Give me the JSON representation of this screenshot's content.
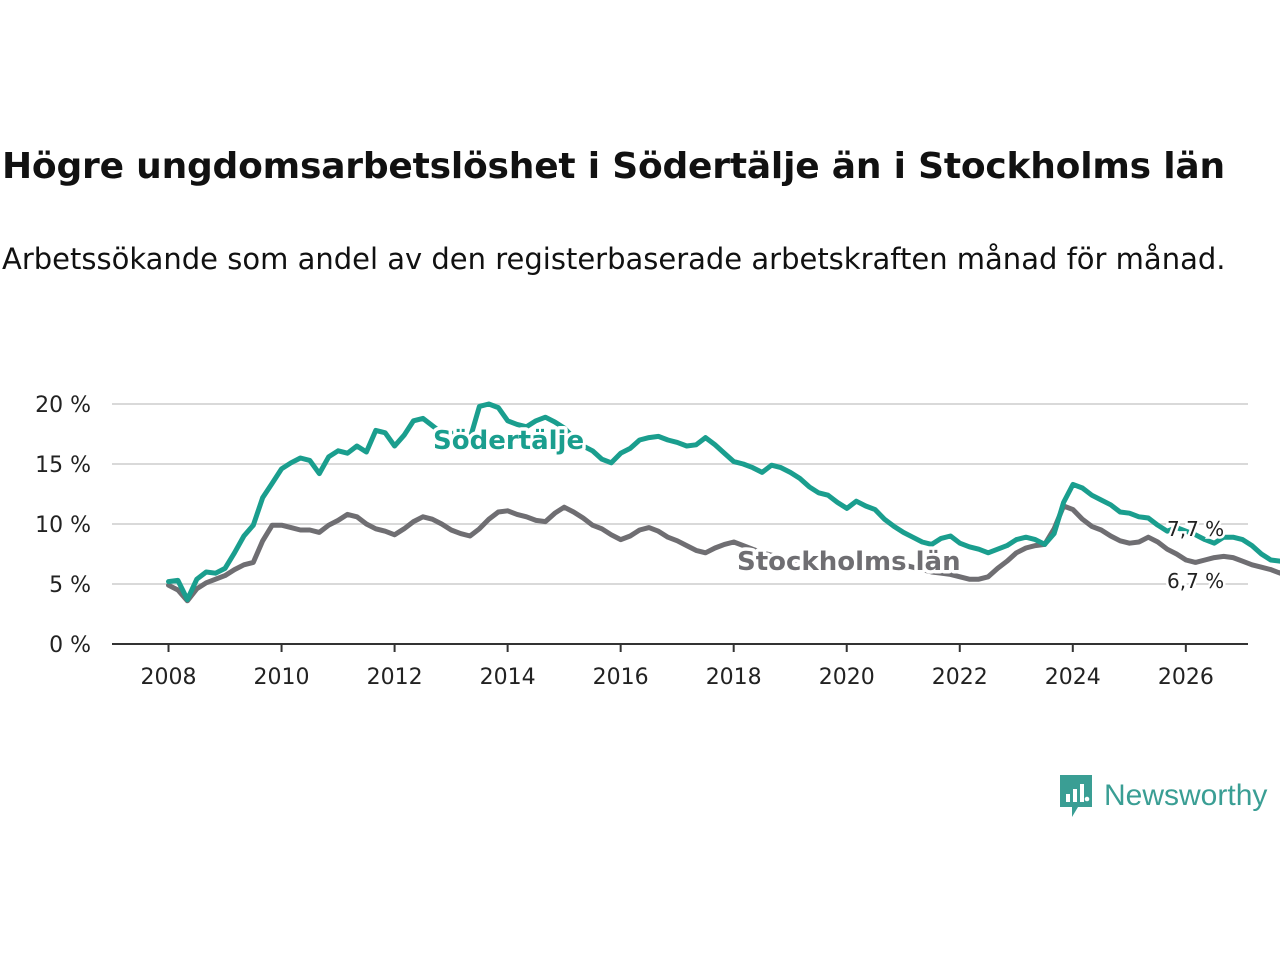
{
  "title": "Högre ungdomsarbetslöshet i Södertälje än i Stockholms län",
  "subtitle": "Arbetssökande som andel av den registerbaserade arbetskraften månad för månad.",
  "brand": {
    "name": "Newsworthy",
    "color": "#3a9e94"
  },
  "chart_data": {
    "type": "line",
    "x_start": 2008.0,
    "x_step": 0.1667,
    "xlim": [
      2007.0,
      2027.1
    ],
    "ylim": [
      0,
      20
    ],
    "x_ticks": [
      2008,
      2010,
      2012,
      2014,
      2016,
      2018,
      2020,
      2022,
      2024,
      2026
    ],
    "x_tick_labels": [
      "2008",
      "2010",
      "2012",
      "2014",
      "2016",
      "2018",
      "2020",
      "2022",
      "2024",
      "2026"
    ],
    "y_ticks": [
      0,
      5,
      10,
      15,
      20
    ],
    "y_tick_labels": [
      "0 %",
      "5 %",
      "10 %",
      "15 %",
      "20 %"
    ],
    "grid": true,
    "series": [
      {
        "name": "Stockholms län",
        "color": "#6f6e72",
        "end_label": "6,7 %",
        "values": [
          4.9,
          4.5,
          3.6,
          4.6,
          5.1,
          5.4,
          5.7,
          6.2,
          6.6,
          6.8,
          8.6,
          9.9,
          9.9,
          9.7,
          9.5,
          9.5,
          9.3,
          9.9,
          10.3,
          10.8,
          10.6,
          10.0,
          9.6,
          9.4,
          9.1,
          9.6,
          10.2,
          10.6,
          10.4,
          10.0,
          9.5,
          9.2,
          9.0,
          9.6,
          10.4,
          11.0,
          11.1,
          10.8,
          10.6,
          10.3,
          10.2,
          10.9,
          11.4,
          11.0,
          10.5,
          9.9,
          9.6,
          9.1,
          8.7,
          9.0,
          9.5,
          9.7,
          9.4,
          8.9,
          8.6,
          8.2,
          7.8,
          7.6,
          8.0,
          8.3,
          8.5,
          8.2,
          7.9,
          7.6,
          7.4,
          7.2,
          6.9,
          7.0,
          7.2,
          7.4,
          7.2,
          6.9,
          6.6,
          6.5,
          6.6,
          6.9,
          7.0,
          6.8,
          6.6,
          6.4,
          6.2,
          6.0,
          5.9,
          5.8,
          5.6,
          5.4,
          5.4,
          5.6,
          6.3,
          6.9,
          7.6,
          8.0,
          8.2,
          8.3,
          9.6,
          11.5,
          11.2,
          10.4,
          9.8,
          9.5,
          9.0,
          8.6,
          8.4,
          8.5,
          8.9,
          8.5,
          7.9,
          7.5,
          7.0,
          6.8,
          7.0,
          7.2,
          7.3,
          7.2,
          6.9,
          6.6,
          6.4,
          6.2,
          5.9,
          6.6,
          7.0,
          7.0,
          6.9,
          6.9,
          6.7,
          6.8,
          6.5,
          6.1,
          6.8,
          7.4,
          7.5,
          7.4,
          7.2,
          7.1,
          7.1,
          7.0,
          6.8,
          6.4,
          7.4,
          7.8,
          7.5,
          7.1,
          6.9,
          6.8,
          6.7
        ]
      },
      {
        "name": "Södertälje",
        "color": "#1a9e8e",
        "end_label": "7,7 %",
        "values": [
          5.2,
          5.3,
          3.7,
          5.4,
          6.0,
          5.9,
          6.3,
          7.6,
          9.0,
          9.9,
          12.2,
          13.4,
          14.6,
          15.1,
          15.5,
          15.3,
          14.2,
          15.6,
          16.1,
          15.9,
          16.5,
          16.0,
          17.8,
          17.6,
          16.5,
          17.4,
          18.6,
          18.8,
          18.2,
          17.6,
          17.5,
          17.8,
          17.1,
          19.8,
          20.0,
          19.7,
          18.6,
          18.3,
          18.1,
          18.6,
          18.9,
          18.5,
          18.0,
          17.2,
          16.5,
          16.1,
          15.4,
          15.1,
          15.9,
          16.3,
          17.0,
          17.2,
          17.3,
          17.0,
          16.8,
          16.5,
          16.6,
          17.2,
          16.6,
          15.9,
          15.2,
          15.0,
          14.7,
          14.3,
          14.9,
          14.7,
          14.3,
          13.8,
          13.1,
          12.6,
          12.4,
          11.8,
          11.3,
          11.9,
          11.5,
          11.2,
          10.4,
          9.8,
          9.3,
          8.9,
          8.5,
          8.3,
          8.8,
          9.0,
          8.4,
          8.1,
          7.9,
          7.6,
          7.9,
          8.2,
          8.7,
          8.9,
          8.7,
          8.3,
          9.2,
          11.8,
          13.3,
          13.0,
          12.4,
          12.0,
          11.6,
          11.0,
          10.9,
          10.6,
          10.5,
          9.9,
          9.4,
          9.7,
          9.4,
          9.1,
          8.7,
          8.4,
          8.9,
          8.9,
          8.7,
          8.2,
          7.5,
          7.0,
          6.9,
          7.1,
          7.4,
          7.2,
          7.3,
          7.2,
          7.1,
          7.3,
          6.8,
          6.4,
          7.5,
          8.0,
          7.8,
          7.6,
          7.8,
          7.9,
          7.7,
          7.5,
          7.2,
          8.6,
          9.2,
          9.3,
          8.6,
          8.0,
          7.8,
          7.7
        ]
      }
    ]
  }
}
